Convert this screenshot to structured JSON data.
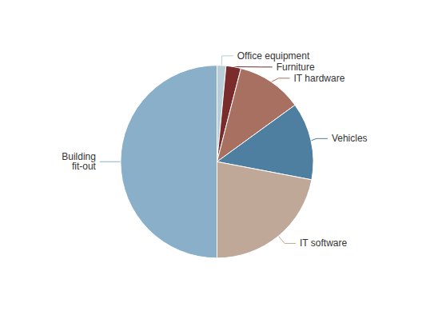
{
  "chart_data": {
    "type": "pie",
    "categories": [
      "Office equipment",
      "Furniture",
      "IT hardware",
      "Vehicles",
      "IT software",
      "Building\nfit-out"
    ],
    "values": [
      1.5,
      2.5,
      11.0,
      13.0,
      22.0,
      50.0
    ],
    "colors": [
      "#b8cdd8",
      "#7a2b2b",
      "#a87060",
      "#4e7fa0",
      "#c0a898",
      "#8aafc8"
    ],
    "legend": false,
    "data_labels": false
  }
}
